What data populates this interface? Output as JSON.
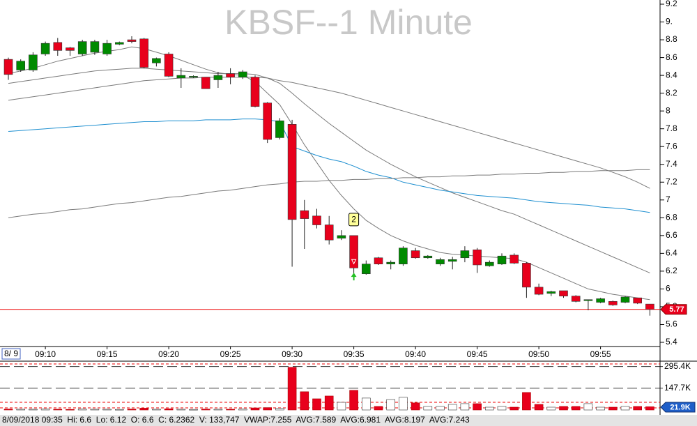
{
  "chart_data": {
    "type": "candlestick",
    "title": "KBSF--1 Minute",
    "date_label": "8/ 9",
    "categories": [
      null,
      null,
      null,
      "09:10",
      null,
      null,
      null,
      null,
      "09:15",
      null,
      null,
      null,
      null,
      "09:20",
      null,
      null,
      null,
      null,
      "09:25",
      null,
      null,
      null,
      null,
      "09:30",
      null,
      null,
      null,
      null,
      "09:35",
      null,
      null,
      null,
      null,
      "09:40",
      null,
      null,
      null,
      null,
      "09:45",
      null,
      null,
      null,
      null,
      "09:50",
      null,
      null,
      null,
      null,
      "09:55",
      null,
      null,
      null,
      null
    ],
    "open": [
      8.58,
      8.46,
      8.46,
      8.64,
      8.77,
      8.71,
      8.64,
      8.66,
      8.64,
      8.75,
      8.8,
      8.81,
      8.54,
      8.64,
      8.37,
      8.38,
      8.38,
      8.35,
      8.42,
      8.38,
      8.38,
      8.09,
      7.7,
      7.85,
      6.88,
      6.82,
      6.72,
      6.57,
      6.6,
      6.17,
      6.35,
      6.28,
      6.28,
      6.43,
      6.35,
      6.28,
      6.31,
      6.35,
      6.44,
      6.26,
      6.28,
      6.38,
      6.29,
      6.02,
      5.95,
      5.98,
      5.92,
      5.88,
      5.85,
      5.86,
      5.85,
      5.9,
      5.83
    ],
    "high": [
      8.6,
      8.58,
      8.66,
      8.78,
      8.82,
      8.72,
      8.8,
      8.8,
      8.8,
      8.78,
      8.84,
      8.82,
      8.6,
      8.66,
      8.48,
      8.4,
      8.38,
      8.44,
      8.48,
      8.46,
      8.4,
      8.1,
      7.92,
      7.9,
      7.0,
      6.9,
      6.82,
      6.66,
      6.6,
      6.32,
      6.36,
      6.32,
      6.48,
      6.46,
      6.38,
      6.35,
      6.36,
      6.48,
      6.46,
      6.32,
      6.4,
      6.4,
      6.3,
      6.06,
      5.98,
      5.98,
      5.93,
      5.88,
      5.9,
      5.87,
      5.92,
      5.9,
      5.83
    ],
    "low": [
      8.35,
      8.44,
      8.44,
      8.62,
      8.62,
      8.62,
      8.62,
      8.63,
      8.62,
      8.74,
      8.76,
      8.48,
      8.5,
      8.38,
      8.26,
      8.37,
      8.25,
      8.26,
      8.3,
      8.36,
      8.04,
      7.64,
      7.68,
      6.25,
      6.45,
      6.68,
      6.5,
      6.55,
      6.12,
      6.16,
      6.27,
      6.22,
      6.26,
      6.34,
      6.34,
      6.26,
      6.22,
      6.3,
      6.18,
      6.25,
      6.27,
      6.28,
      5.9,
      5.93,
      5.92,
      5.9,
      5.85,
      5.76,
      5.84,
      5.81,
      5.84,
      5.83,
      5.7
    ],
    "close": [
      8.41,
      8.56,
      8.63,
      8.76,
      8.68,
      8.68,
      8.78,
      8.78,
      8.76,
      8.77,
      8.78,
      8.49,
      8.59,
      8.39,
      8.4,
      8.39,
      8.25,
      8.4,
      8.38,
      8.44,
      8.05,
      7.68,
      7.89,
      6.78,
      6.79,
      6.72,
      6.55,
      6.6,
      6.2362,
      6.28,
      6.28,
      6.3,
      6.46,
      6.35,
      6.37,
      6.33,
      6.33,
      6.43,
      6.27,
      6.3,
      6.37,
      6.29,
      6.02,
      5.94,
      5.97,
      5.92,
      5.86,
      5.88,
      5.89,
      5.82,
      5.91,
      5.84,
      5.77
    ],
    "up_color": "#008a00",
    "down_color": "#e8001c",
    "lines": [
      {
        "color": "#7a7a7a",
        "values": [
          8.42,
          8.45,
          8.48,
          8.52,
          8.56,
          8.59,
          8.62,
          8.65,
          8.67,
          8.69,
          8.72,
          8.7,
          8.66,
          8.62,
          8.57,
          8.52,
          8.47,
          8.43,
          8.41,
          8.4,
          8.33,
          8.2,
          8.07,
          7.85,
          7.62,
          7.42,
          7.22,
          7.05,
          6.9,
          6.77,
          6.68,
          6.6,
          6.54,
          6.49,
          6.45,
          6.41,
          6.39,
          6.38,
          6.37,
          6.36,
          6.35,
          6.34,
          6.3,
          6.24,
          6.18,
          6.12,
          6.06,
          6.0,
          5.97,
          5.94,
          5.92,
          5.9,
          5.88
        ]
      },
      {
        "color": "#7a7a7a",
        "values": [
          8.31,
          8.33,
          8.35,
          8.37,
          8.39,
          8.41,
          8.43,
          8.45,
          8.46,
          8.47,
          8.48,
          8.48,
          8.47,
          8.46,
          8.45,
          8.44,
          8.43,
          8.42,
          8.42,
          8.42,
          8.41,
          8.37,
          8.31,
          8.2,
          8.08,
          7.97,
          7.86,
          7.76,
          7.66,
          7.56,
          7.48,
          7.4,
          7.33,
          7.26,
          7.2,
          7.14,
          7.08,
          7.03,
          6.98,
          6.93,
          6.88,
          6.84,
          6.78,
          6.72,
          6.66,
          6.6,
          6.54,
          6.48,
          6.42,
          6.36,
          6.3,
          6.24,
          6.18
        ]
      },
      {
        "color": "#7a7a7a",
        "values": [
          8.12,
          8.14,
          8.16,
          8.18,
          8.2,
          8.22,
          8.24,
          8.26,
          8.28,
          8.3,
          8.32,
          8.34,
          8.35,
          8.36,
          8.37,
          8.37,
          8.38,
          8.38,
          8.38,
          8.38,
          8.38,
          8.37,
          8.34,
          8.32,
          8.29,
          8.26,
          8.23,
          8.2,
          8.16,
          8.12,
          8.08,
          8.04,
          8.0,
          7.96,
          7.92,
          7.88,
          7.84,
          7.8,
          7.76,
          7.72,
          7.68,
          7.64,
          7.6,
          7.56,
          7.52,
          7.48,
          7.44,
          7.4,
          7.36,
          7.31,
          7.26,
          7.2,
          7.13
        ]
      },
      {
        "color": "#1e8fd0",
        "values": [
          7.77,
          7.78,
          7.79,
          7.8,
          7.81,
          7.82,
          7.83,
          7.84,
          7.85,
          7.86,
          7.87,
          7.88,
          7.88,
          7.89,
          7.89,
          7.89,
          7.9,
          7.9,
          7.9,
          7.91,
          7.91,
          7.9,
          7.88,
          7.6,
          7.55,
          7.5,
          7.46,
          7.43,
          7.38,
          7.32,
          7.28,
          7.25,
          7.2,
          7.17,
          7.14,
          7.11,
          7.09,
          7.07,
          7.05,
          7.04,
          7.03,
          7.02,
          7.0,
          6.98,
          6.97,
          6.96,
          6.95,
          6.94,
          6.92,
          6.91,
          6.9,
          6.88,
          6.86
        ]
      },
      {
        "color": "#7a7a7a",
        "values": [
          6.8,
          6.82,
          6.84,
          6.85,
          6.87,
          6.89,
          6.9,
          6.92,
          6.94,
          6.96,
          6.97,
          6.99,
          7.01,
          7.03,
          7.04,
          7.06,
          7.08,
          7.1,
          7.11,
          7.13,
          7.15,
          7.17,
          7.18,
          7.2,
          7.21,
          7.21,
          7.22,
          7.22,
          7.23,
          7.23,
          7.24,
          7.24,
          7.25,
          7.25,
          7.26,
          7.26,
          7.27,
          7.27,
          7.28,
          7.28,
          7.29,
          7.29,
          7.3,
          7.3,
          7.31,
          7.31,
          7.32,
          7.32,
          7.33,
          7.33,
          7.33,
          7.34,
          7.34
        ]
      }
    ],
    "ylim": [
      5.4,
      9.2
    ],
    "yticks": [
      9.2,
      {
        "value": 9,
        "label": "9."
      },
      8.8,
      8.6,
      8.4,
      8.2,
      8,
      7.8,
      7.6,
      7.4,
      7.2,
      7,
      6.8,
      6.6,
      6.4,
      6.2,
      6,
      5.8,
      5.6,
      5.4
    ],
    "marker_label": "2",
    "volume": {
      "values": [
        6000,
        5000,
        5000,
        6000,
        5000,
        4000,
        6000,
        5000,
        5000,
        4000,
        6000,
        12000,
        5000,
        8000,
        5000,
        4000,
        6000,
        5000,
        5000,
        6000,
        14000,
        16000,
        12000,
        290000,
        124000,
        76000,
        95000,
        52000,
        133747,
        81000,
        24000,
        71000,
        86000,
        48000,
        24000,
        24000,
        38000,
        43000,
        43000,
        19000,
        24000,
        19000,
        119000,
        38000,
        19000,
        24000,
        24000,
        43000,
        19000,
        19000,
        24000,
        24000,
        21900
      ],
      "ylim": [
        0,
        320000
      ],
      "yticks": [
        {
          "value": 295400,
          "label": "295.4K"
        },
        {
          "value": 147700,
          "label": "147.7K"
        }
      ],
      "last_label": "21.9K"
    },
    "status": "8/09/2018 09:35  Hi: 6.6  Lo: 6.12  O: 6.6  C: 6.2362  V: 133,747  VWAP:7.255  AVG:7.589  AVG:6.981  AVG:8.197  AVG:7.243"
  }
}
